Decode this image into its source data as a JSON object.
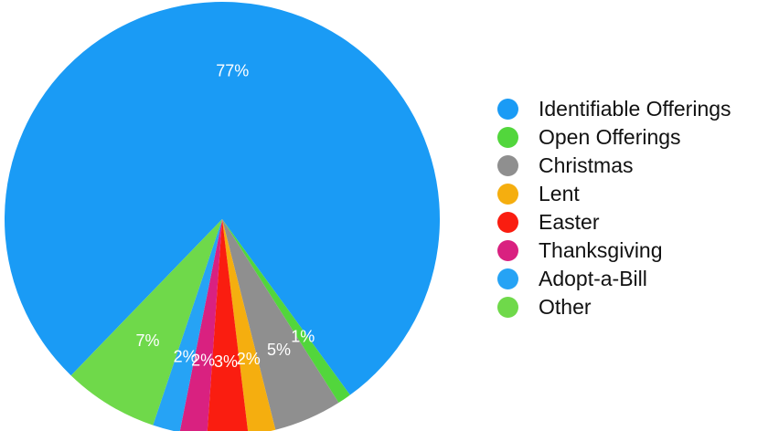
{
  "chart_data": {
    "type": "pie",
    "categories": [
      "Identifiable Offerings",
      "Open Offerings",
      "Christmas",
      "Lent",
      "Easter",
      "Thanksgiving",
      "Adopt-a-Bill",
      "Other"
    ],
    "values": [
      77,
      1,
      5,
      2,
      3,
      2,
      2,
      7
    ],
    "labels": [
      "77%",
      "1%",
      "5%",
      "2%",
      "3%",
      "2%",
      "2%",
      "7%"
    ],
    "colors": [
      "#1a9bf5",
      "#52d63c",
      "#8f8f8f",
      "#f5ae0f",
      "#fa1d10",
      "#d92180",
      "#26a3f5",
      "#6fd94a"
    ],
    "legend_position": "right",
    "start_angle_deg": 224,
    "direction": "clockwise"
  }
}
